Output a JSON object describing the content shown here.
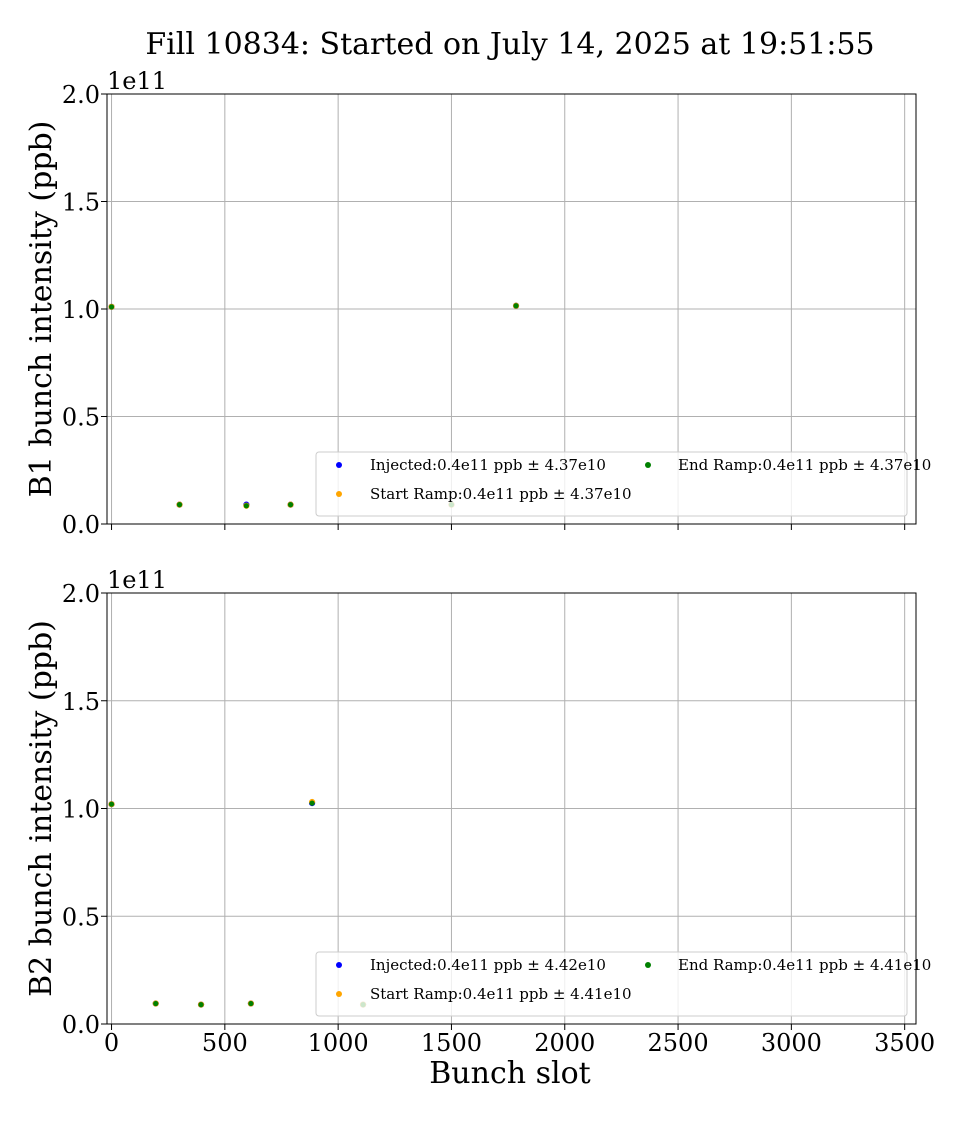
{
  "figure": {
    "title": "Fill 10834: Started on July 14, 2025 at 19:51:55",
    "xlabel": "Bunch slot"
  },
  "chart_data": [
    {
      "type": "scatter",
      "title": "Fill 10834: Started on July 14, 2025 at 19:51:55",
      "xlabel": "",
      "ylabel": "B1 bunch intensity (ppb)",
      "y_offset_label": "1e11",
      "xlim": [
        -20,
        3550
      ],
      "ylim": [
        0,
        2.0
      ],
      "x_ticks": [
        0,
        500,
        1000,
        1500,
        2000,
        2500,
        3000,
        3500
      ],
      "x_tick_labels_visible": false,
      "y_ticks": [
        0.0,
        0.5,
        1.0,
        1.5,
        2.0
      ],
      "y_tick_labels": [
        "0.0",
        "0.5",
        "1.0",
        "1.5",
        "2.0"
      ],
      "grid": true,
      "legend_position": "lower-right",
      "series": [
        {
          "name": "Injected:0.4e11 ppb ± 4.37e10",
          "color": "#0000ff",
          "x": [
            0,
            300,
            595,
            790,
            1500,
            1785
          ],
          "y": [
            1.01,
            0.09,
            0.09,
            0.09,
            0.09,
            1.015
          ]
        },
        {
          "name": "Start Ramp:0.4e11 ppb ± 4.37e10",
          "color": "#ffa500",
          "x": [
            0,
            300,
            595,
            790,
            1500,
            1785
          ],
          "y": [
            1.01,
            0.09,
            0.085,
            0.09,
            0.09,
            1.015
          ]
        },
        {
          "name": "End Ramp:0.4e11 ppb ± 4.37e10",
          "color": "#008000",
          "x": [
            0,
            300,
            595,
            790,
            1500,
            1785
          ],
          "y": [
            1.01,
            0.09,
            0.085,
            0.09,
            0.09,
            1.015
          ]
        }
      ]
    },
    {
      "type": "scatter",
      "title": "",
      "xlabel": "Bunch slot",
      "ylabel": "B2 bunch intensity (ppb)",
      "y_offset_label": "1e11",
      "xlim": [
        -20,
        3550
      ],
      "ylim": [
        0,
        2.0
      ],
      "x_ticks": [
        0,
        500,
        1000,
        1500,
        2000,
        2500,
        3000,
        3500
      ],
      "x_tick_labels": [
        "0",
        "500",
        "1000",
        "1500",
        "2000",
        "2500",
        "3000",
        "3500"
      ],
      "x_tick_labels_visible": true,
      "y_ticks": [
        0.0,
        0.5,
        1.0,
        1.5,
        2.0
      ],
      "y_tick_labels": [
        "0.0",
        "0.5",
        "1.0",
        "1.5",
        "2.0"
      ],
      "grid": true,
      "legend_position": "lower-right",
      "series": [
        {
          "name": "Injected:0.4e11 ppb ± 4.42e10",
          "color": "#0000ff",
          "x": [
            0,
            195,
            395,
            615,
            885,
            1110
          ],
          "y": [
            1.02,
            0.095,
            0.09,
            0.095,
            1.025,
            0.09
          ]
        },
        {
          "name": "Start Ramp:0.4e11 ppb ± 4.41e10",
          "color": "#ffa500",
          "x": [
            0,
            195,
            395,
            615,
            885,
            1110
          ],
          "y": [
            1.02,
            0.095,
            0.09,
            0.095,
            1.03,
            0.09
          ]
        },
        {
          "name": "End Ramp:0.4e11 ppb ± 4.41e10",
          "color": "#008000",
          "x": [
            0,
            195,
            395,
            615,
            885,
            1110
          ],
          "y": [
            1.02,
            0.095,
            0.09,
            0.095,
            1.025,
            0.09
          ]
        }
      ]
    }
  ]
}
